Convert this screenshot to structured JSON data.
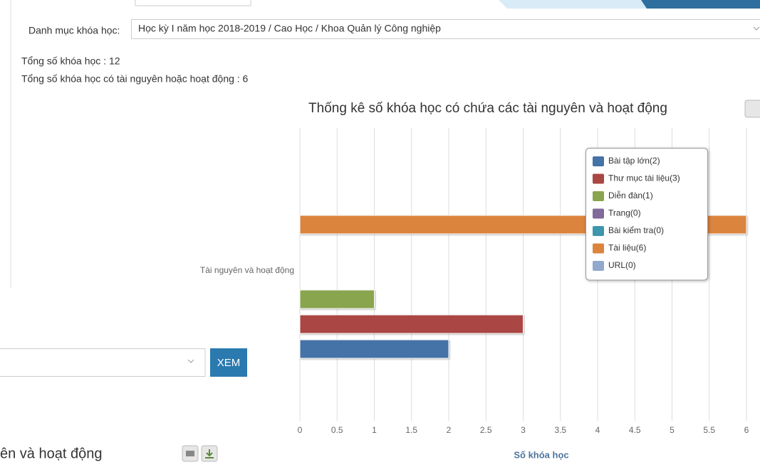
{
  "ui": {
    "filter_label": "Danh mục khóa học:",
    "filter_value": "Học kỳ I năm học 2018-2019 / Cao Học / Khoa Quản lý Công nghiệp",
    "total_courses": "Tổng số khóa học : 12",
    "total_with_resources": "Tổng số khóa học có tài nguyên hoặc hoạt động : 6",
    "button": "XEM",
    "bottom_title": "ên và hoạt động"
  },
  "chart_data": {
    "type": "bar",
    "orientation": "horizontal",
    "title": "Thống kê số khóa học có chứa các tài nguyên và hoạt động",
    "x_label": "Số khóa học",
    "categories": [
      "Tài nguyên và hoạt động"
    ],
    "series": [
      {
        "name": "Bài tập lớn(2)",
        "color": "#4572a7",
        "values": [
          2
        ]
      },
      {
        "name": "Thư mục tài liệu(3)",
        "color": "#aa4643",
        "values": [
          3
        ]
      },
      {
        "name": "Diễn đàn(1)",
        "color": "#89a54e",
        "values": [
          1
        ]
      },
      {
        "name": "Trang(0)",
        "color": "#80699b",
        "values": [
          0
        ]
      },
      {
        "name": "Bài kiểm tra(0)",
        "color": "#3d96ae",
        "values": [
          0
        ]
      },
      {
        "name": "Tài liệu(6)",
        "color": "#db843d",
        "values": [
          6
        ]
      },
      {
        "name": "URL(0)",
        "color": "#92a8cd",
        "values": [
          0
        ]
      }
    ],
    "xlim": [
      0,
      6
    ],
    "xticks": [
      0,
      0.5,
      1,
      1.5,
      2,
      2.5,
      3,
      3.5,
      4,
      4.5,
      5,
      5.5,
      6
    ],
    "grid": true,
    "legend": "top-right"
  }
}
